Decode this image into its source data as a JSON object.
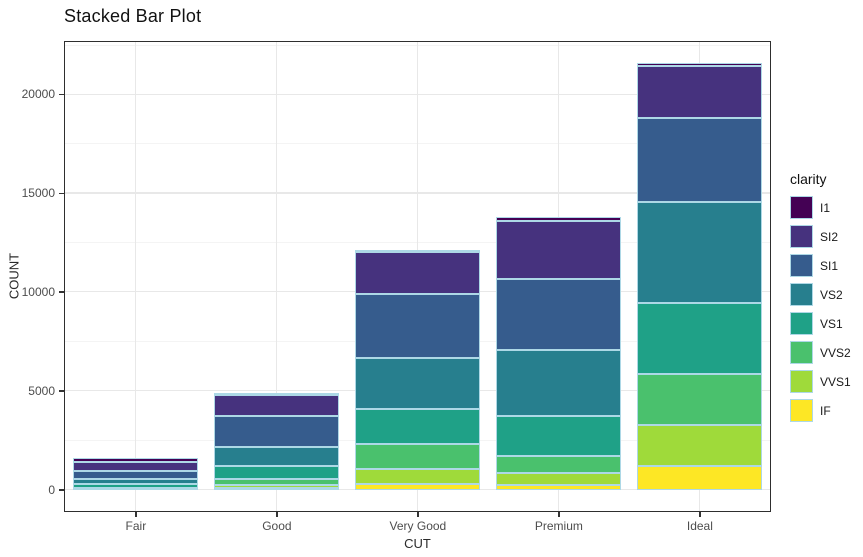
{
  "chart_data": {
    "type": "bar",
    "stacked": true,
    "title": "Stacked Bar Plot",
    "xlabel": "CUT",
    "ylabel": "COUNT",
    "categories": [
      "Fair",
      "Good",
      "Very Good",
      "Premium",
      "Ideal"
    ],
    "series": [
      {
        "name": "I1",
        "color": "#440154",
        "values": [
          210,
          96,
          84,
          205,
          146
        ]
      },
      {
        "name": "SI2",
        "color": "#46327E",
        "values": [
          466,
          1081,
          2100,
          2949,
          2598
        ]
      },
      {
        "name": "SI1",
        "color": "#365C8D",
        "values": [
          408,
          1560,
          3240,
          3575,
          4282
        ]
      },
      {
        "name": "VS2",
        "color": "#277F8E",
        "values": [
          261,
          978,
          2591,
          3357,
          5071
        ]
      },
      {
        "name": "VS1",
        "color": "#1FA187",
        "values": [
          170,
          648,
          1775,
          1989,
          3589
        ]
      },
      {
        "name": "VVS2",
        "color": "#4AC16D",
        "values": [
          69,
          286,
          1235,
          870,
          2606
        ]
      },
      {
        "name": "VVS1",
        "color": "#9FDA3A",
        "values": [
          17,
          186,
          789,
          616,
          2047
        ]
      },
      {
        "name": "IF",
        "color": "#FDE725",
        "values": [
          9,
          71,
          268,
          230,
          1212
        ]
      }
    ],
    "totals": [
      1610,
      4906,
      12082,
      13791,
      21551
    ],
    "stack_order": "first-series-on-top",
    "y_ticks": [
      0,
      5000,
      10000,
      15000,
      20000
    ],
    "y_tick_labels": [
      "0",
      "5000",
      "10000",
      "15000",
      "20000"
    ],
    "y_minor_step": 2500,
    "ylim_expanded": [
      -1078,
      22629
    ],
    "bar_width_fraction": 0.88,
    "legend": {
      "title": "clarity",
      "position": "right",
      "entries": [
        "I1",
        "SI2",
        "SI1",
        "VS2",
        "VS1",
        "VVS2",
        "VVS1",
        "IF"
      ]
    },
    "colors": {
      "bar_outline": "#ADD8E6",
      "grid_major": "#E8E8E8",
      "grid_minor": "#F4F4F4",
      "panel_border": "#2E2E2E",
      "axis_text": "#4D4D4D",
      "tick_mark": "#333333"
    }
  }
}
